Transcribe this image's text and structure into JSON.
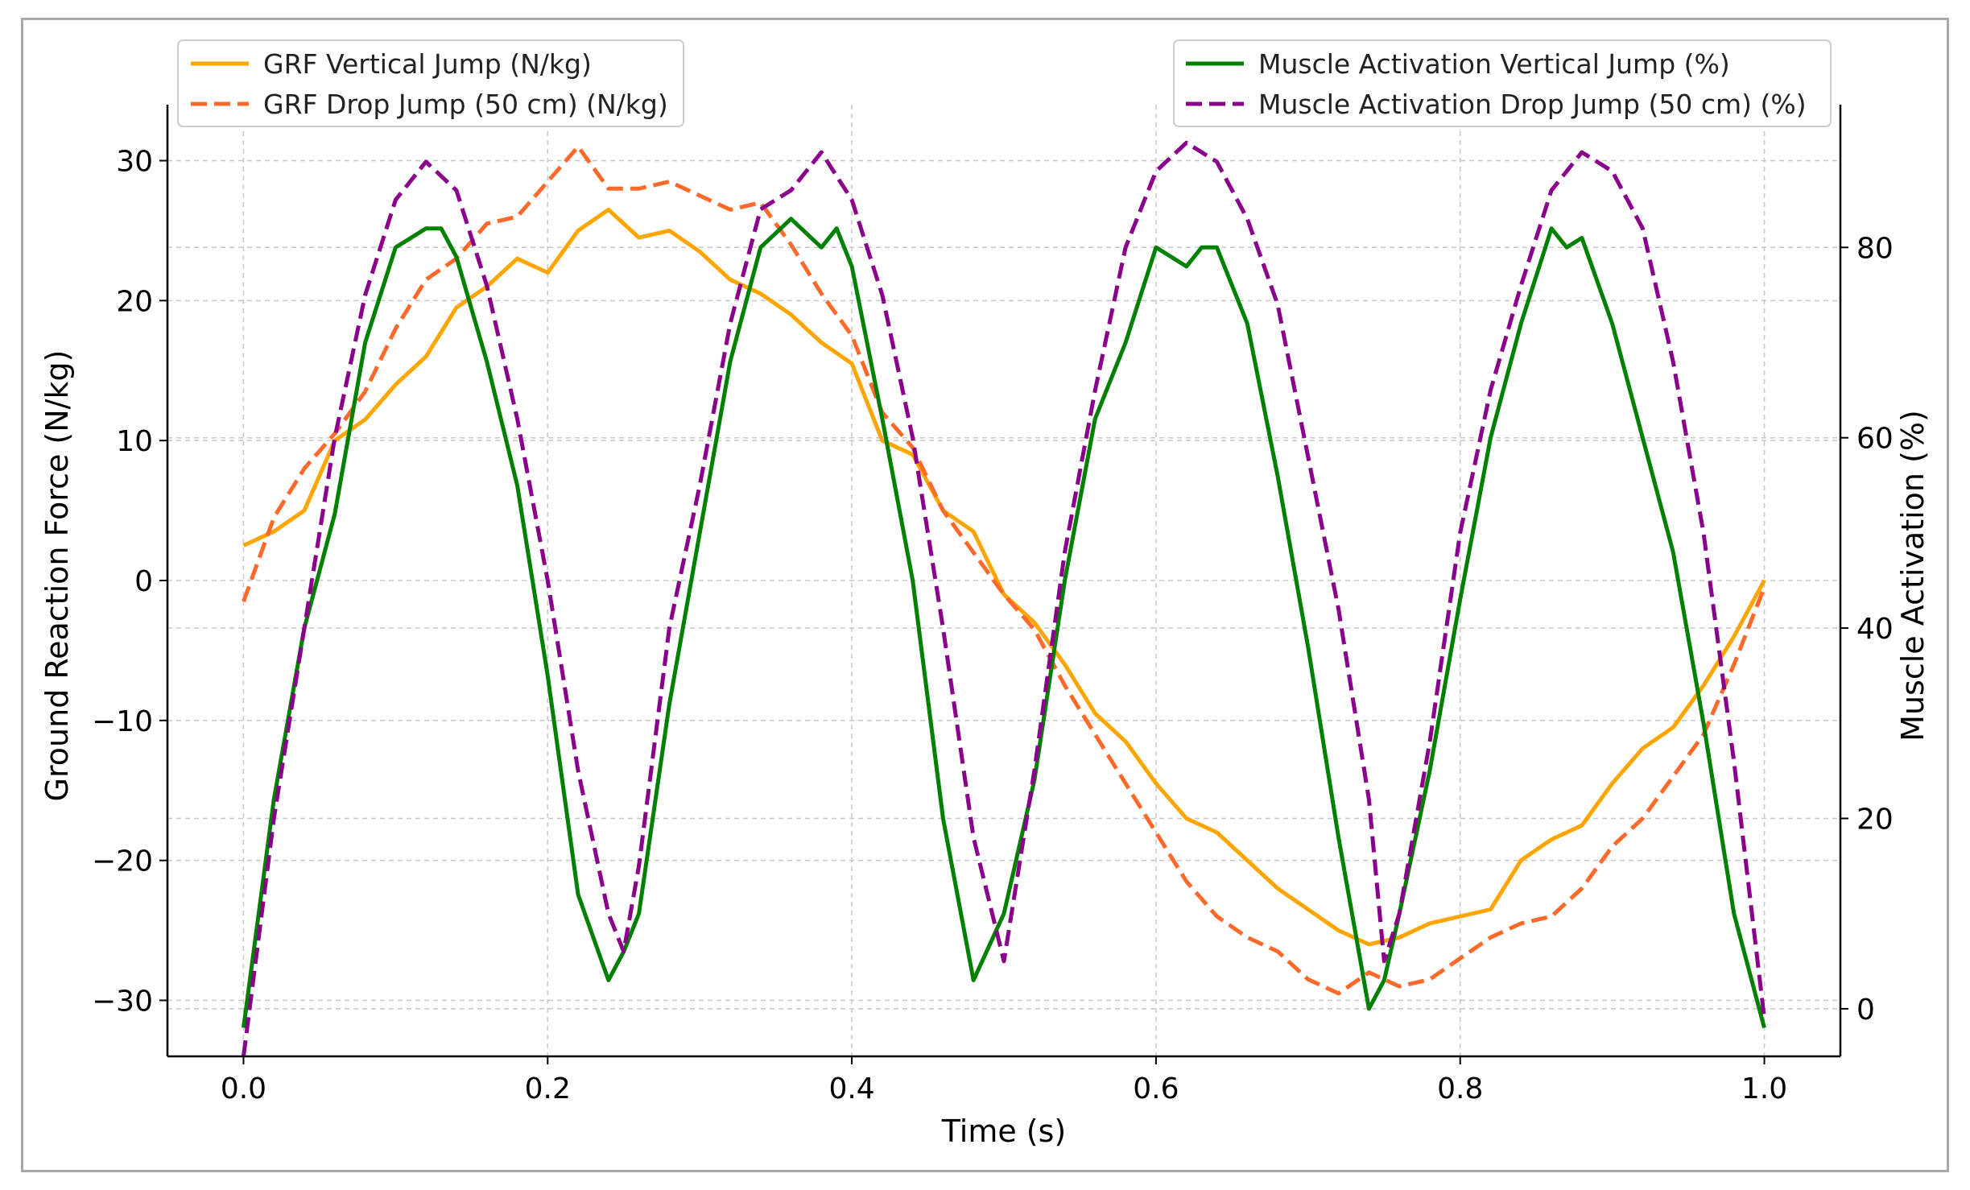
{
  "chart_data": {
    "type": "line",
    "xlabel": "Time (s)",
    "ylabel_left": "Ground Reaction Force (N/kg)",
    "ylabel_right": "Muscle Activation (%)",
    "xlim": [
      -0.05,
      1.05
    ],
    "ylim_left": [
      -34,
      34
    ],
    "ylim_right": [
      -5,
      95
    ],
    "x_ticks": [
      0.0,
      0.2,
      0.4,
      0.6,
      0.8,
      1.0
    ],
    "x_tick_labels": [
      "0.0",
      "0.2",
      "0.4",
      "0.6",
      "0.8",
      "1.0"
    ],
    "y_left_ticks": [
      -30,
      -20,
      -10,
      0,
      10,
      20,
      30
    ],
    "y_left_tick_labels": [
      "−30",
      "−20",
      "−10",
      "0",
      "10",
      "20",
      "30"
    ],
    "y_right_ticks": [
      0,
      20,
      40,
      60,
      80
    ],
    "y_right_tick_labels": [
      "0",
      "20",
      "40",
      "60",
      "80"
    ],
    "grid": true,
    "legend_left_position": "top-left",
    "legend_right_position": "top-right",
    "series": [
      {
        "name": "GRF Vertical Jump (N/kg)",
        "axis": "left",
        "color": "#FFA500",
        "dash": "solid",
        "x": [
          0.0,
          0.02,
          0.04,
          0.06,
          0.08,
          0.1,
          0.12,
          0.14,
          0.16,
          0.18,
          0.2,
          0.22,
          0.24,
          0.26,
          0.28,
          0.3,
          0.32,
          0.34,
          0.36,
          0.38,
          0.4,
          0.42,
          0.44,
          0.46,
          0.48,
          0.5,
          0.52,
          0.54,
          0.56,
          0.58,
          0.6,
          0.62,
          0.64,
          0.66,
          0.68,
          0.7,
          0.72,
          0.74,
          0.76,
          0.78,
          0.8,
          0.82,
          0.84,
          0.86,
          0.88,
          0.9,
          0.92,
          0.94,
          0.96,
          0.98,
          1.0
        ],
        "y": [
          2.5,
          3.5,
          5.0,
          10.0,
          11.5,
          14.0,
          16.0,
          19.5,
          21.0,
          23.0,
          22.0,
          25.0,
          26.5,
          24.5,
          25.0,
          23.5,
          21.5,
          20.5,
          19.0,
          17.0,
          15.5,
          10.0,
          9.0,
          5.0,
          3.5,
          -1.0,
          -3.0,
          -6.0,
          -9.5,
          -11.5,
          -14.5,
          -17.0,
          -18.0,
          -20.0,
          -22.0,
          -23.5,
          -25.0,
          -26.0,
          -25.5,
          -24.5,
          -24.0,
          -23.5,
          -20.0,
          -18.5,
          -17.5,
          -14.5,
          -12.0,
          -10.5,
          -7.5,
          -4.0,
          0.0
        ]
      },
      {
        "name": "GRF Drop Jump (50 cm) (N/kg)",
        "axis": "left",
        "color": "#FF6A2A",
        "dash": "dashed",
        "x": [
          0.0,
          0.02,
          0.04,
          0.06,
          0.08,
          0.1,
          0.12,
          0.14,
          0.16,
          0.18,
          0.2,
          0.22,
          0.24,
          0.26,
          0.28,
          0.3,
          0.32,
          0.34,
          0.36,
          0.38,
          0.4,
          0.42,
          0.44,
          0.46,
          0.48,
          0.5,
          0.52,
          0.54,
          0.56,
          0.58,
          0.6,
          0.62,
          0.64,
          0.66,
          0.68,
          0.7,
          0.72,
          0.74,
          0.76,
          0.78,
          0.8,
          0.82,
          0.84,
          0.86,
          0.88,
          0.9,
          0.92,
          0.94,
          0.96,
          0.98,
          1.0
        ],
        "y": [
          -1.5,
          4.5,
          8.0,
          10.5,
          13.5,
          18.0,
          21.5,
          23.0,
          25.5,
          26.0,
          28.5,
          31.0,
          28.0,
          28.0,
          28.5,
          27.5,
          26.5,
          27.0,
          24.0,
          20.5,
          17.5,
          12.0,
          9.5,
          5.0,
          2.0,
          -1.0,
          -3.5,
          -7.5,
          -11.0,
          -14.5,
          -18.0,
          -21.5,
          -24.0,
          -25.5,
          -26.5,
          -28.5,
          -29.5,
          -28.0,
          -29.0,
          -28.5,
          -27.0,
          -25.5,
          -24.5,
          -24.0,
          -22.0,
          -19.0,
          -17.0,
          -14.0,
          -11.0,
          -6.0,
          -0.5
        ]
      },
      {
        "name": "Muscle Activation Vertical Jump (%)",
        "axis": "right",
        "color": "#008000",
        "dash": "solid",
        "x": [
          0.0,
          0.02,
          0.04,
          0.06,
          0.08,
          0.1,
          0.12,
          0.13,
          0.14,
          0.16,
          0.18,
          0.2,
          0.22,
          0.24,
          0.25,
          0.26,
          0.28,
          0.3,
          0.32,
          0.34,
          0.36,
          0.38,
          0.39,
          0.4,
          0.42,
          0.44,
          0.46,
          0.48,
          0.5,
          0.52,
          0.54,
          0.56,
          0.58,
          0.6,
          0.62,
          0.63,
          0.64,
          0.66,
          0.68,
          0.7,
          0.72,
          0.74,
          0.75,
          0.76,
          0.78,
          0.8,
          0.82,
          0.84,
          0.86,
          0.87,
          0.88,
          0.9,
          0.92,
          0.94,
          0.96,
          0.98,
          1.0
        ],
        "y": [
          -2,
          22,
          40,
          52,
          70,
          80,
          82,
          82,
          79,
          68,
          55,
          35,
          12,
          3,
          6,
          10,
          32,
          50,
          68,
          80,
          83,
          80,
          82,
          78,
          62,
          45,
          20,
          3,
          10,
          24,
          45,
          62,
          70,
          80,
          78,
          80,
          80,
          72,
          56,
          38,
          18,
          0,
          3,
          10,
          25,
          43,
          60,
          72,
          82,
          80,
          81,
          72,
          60,
          48,
          30,
          10,
          -2
        ]
      },
      {
        "name": "Muscle Activation Drop Jump (50 cm) (%)",
        "axis": "right",
        "color": "#8B008B",
        "dash": "dashed",
        "x": [
          0.0,
          0.02,
          0.04,
          0.06,
          0.08,
          0.1,
          0.12,
          0.14,
          0.16,
          0.18,
          0.2,
          0.22,
          0.24,
          0.25,
          0.26,
          0.28,
          0.3,
          0.32,
          0.34,
          0.36,
          0.38,
          0.4,
          0.42,
          0.44,
          0.46,
          0.48,
          0.5,
          0.52,
          0.54,
          0.56,
          0.58,
          0.6,
          0.62,
          0.64,
          0.66,
          0.68,
          0.7,
          0.72,
          0.74,
          0.75,
          0.76,
          0.78,
          0.8,
          0.82,
          0.84,
          0.86,
          0.88,
          0.9,
          0.92,
          0.94,
          0.96,
          0.98,
          1.0
        ],
        "y": [
          -5,
          20,
          40,
          60,
          75,
          85,
          89,
          86,
          76,
          62,
          45,
          25,
          10,
          6,
          15,
          40,
          55,
          72,
          84,
          86,
          90,
          85,
          75,
          60,
          40,
          18,
          5,
          25,
          48,
          65,
          80,
          88,
          91,
          89,
          83,
          74,
          58,
          42,
          22,
          5,
          10,
          28,
          50,
          65,
          76,
          86,
          90,
          88,
          82,
          68,
          50,
          26,
          -1
        ]
      }
    ]
  }
}
